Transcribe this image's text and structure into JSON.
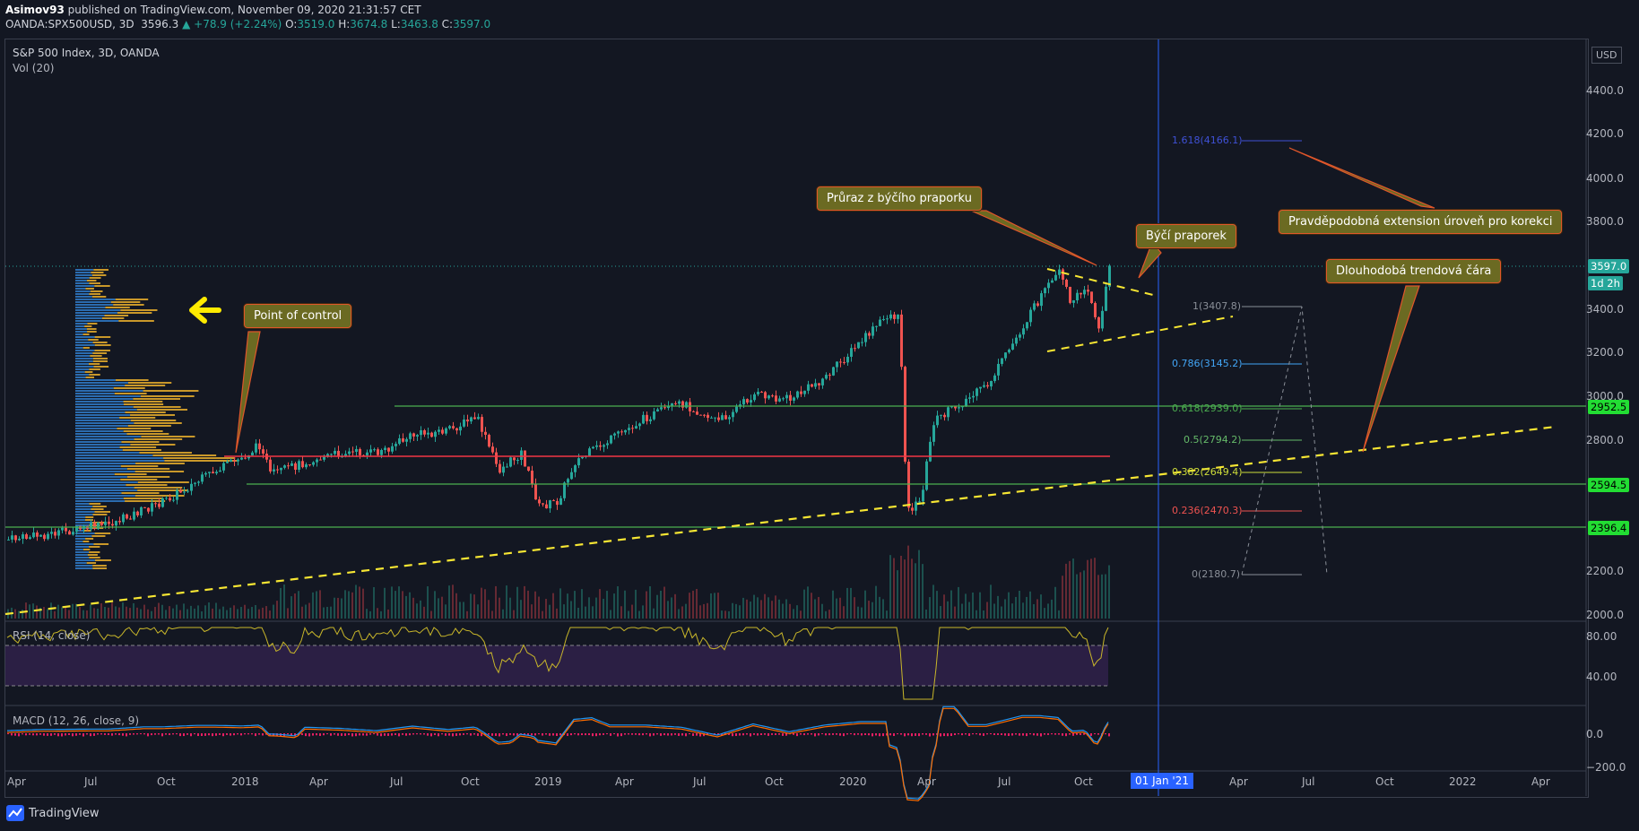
{
  "header": {
    "author": "Asimov93",
    "published": "published on TradingView.com, November 09, 2020 21:31:57 CET",
    "symbol": "OANDA:SPX500USD, 3D",
    "price": "3596.3",
    "change": "▲ +78.9 (+2.24%)",
    "o_label": "O:",
    "o_value": "3519.0",
    "h_label": "H:",
    "h_value": "3674.8",
    "l_label": "L:",
    "l_value": "3463.8",
    "c_label": "C:",
    "c_value": "3597.0"
  },
  "pane": {
    "title": "S&P 500 Index, 3D, OANDA",
    "vol": "Vol (20)",
    "rsi": "RSI (14, close)",
    "macd": "MACD (12, 26, close, 9)",
    "currency": "USD"
  },
  "price_axis": [
    "4400.0",
    "4200.0",
    "4000.0",
    "3800.0",
    "3400.0",
    "3200.0",
    "3000.0",
    "2800.0",
    "2200.0",
    "2000.0"
  ],
  "rsi_axis": [
    "80.00",
    "40.00"
  ],
  "macd_axis": [
    "0.0",
    "−200.0"
  ],
  "price_tags": {
    "last": "3597.0",
    "countdown": "1d 2h",
    "l1": "2952.5",
    "l2": "2594.5",
    "l3": "2396.4"
  },
  "time_axis": [
    "Apr",
    "Jul",
    "Oct",
    "2018",
    "Apr",
    "Jul",
    "Oct",
    "2019",
    "Apr",
    "Jul",
    "Oct",
    "2020",
    "Apr",
    "Jul",
    "Oct",
    "Apr",
    "Jul",
    "Oct",
    "2022",
    "Apr"
  ],
  "time_cursor": "01 Jan '21",
  "fib_levels": [
    {
      "label": "1.618(4166.1)",
      "color": "#3f51d6"
    },
    {
      "label": "1(3407.8)",
      "color": "#8a8f98"
    },
    {
      "label": "0.786(3145.2)",
      "color": "#42a5f5"
    },
    {
      "label": "0.618(2939.0)",
      "color": "#4caf50"
    },
    {
      "label": "0.5(2794.2)",
      "color": "#66bb6a"
    },
    {
      "label": "0.382(2649.4)",
      "color": "#cddc39"
    },
    {
      "label": "0.236(2470.3)",
      "color": "#ef5350"
    },
    {
      "label": "0(2180.7)",
      "color": "#8a8f98"
    }
  ],
  "notes": {
    "poc": "Point of control",
    "breakout": "Průraz z býčího praporku",
    "flag": "Býčí praporek",
    "extension": "Pravděpodobná extension úroveň pro korekci",
    "trendline": "Dlouhodobá trendová čára"
  },
  "logo": "TradingView",
  "colors": {
    "bg": "#131722",
    "up": "#26a69a",
    "down": "#ef5350",
    "hline_green": "#4caf50",
    "hline_red": "#f23645",
    "trend_yellow": "#f7e633",
    "rsi": "#c9b72a",
    "macd": "#2196f3",
    "signal": "#ff6d00",
    "note_bg": "#6b6a22"
  }
}
